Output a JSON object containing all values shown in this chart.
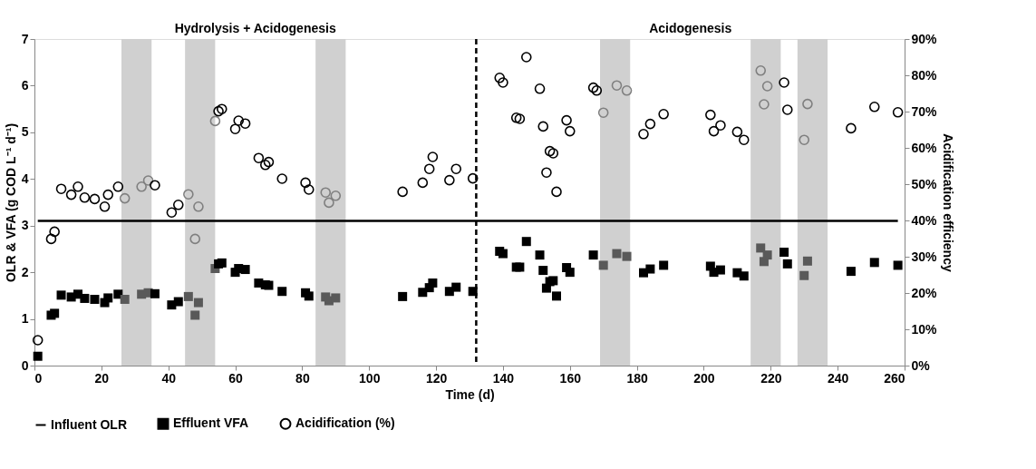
{
  "chart_data": {
    "type": "scatter",
    "xlabel": "Time (d)",
    "ylabel": "OLR & VFA (g COD L⁻¹ d⁻¹)",
    "y2label": "Acidification efficiency",
    "annotations": [
      "Hydrolysis + Acidogenesis",
      "Acidogenesis"
    ],
    "xlim": [
      0,
      260
    ],
    "xticks": [
      0,
      20,
      40,
      60,
      80,
      100,
      120,
      140,
      160,
      180,
      200,
      220,
      240,
      260
    ],
    "ylim": [
      0,
      7
    ],
    "yticks": [
      0,
      1,
      2,
      3,
      4,
      5,
      6,
      7
    ],
    "y2lim": [
      0,
      90
    ],
    "y2ticks": [
      {
        "value": 0,
        "label": "0%"
      },
      {
        "value": 10,
        "label": "10%"
      },
      {
        "value": 20,
        "label": "20%"
      },
      {
        "value": 30,
        "label": "30%"
      },
      {
        "value": 40,
        "label": "40%"
      },
      {
        "value": 50,
        "label": "50%"
      },
      {
        "value": 60,
        "label": "60%"
      },
      {
        "value": 70,
        "label": "70%"
      },
      {
        "value": 80,
        "label": "80%"
      },
      {
        "value": 90,
        "label": "90%"
      }
    ],
    "legend": "bottom",
    "ref_lines": [
      {
        "axis": "x",
        "value": 132,
        "label": null,
        "color": "#000000",
        "line_style": "dashed"
      }
    ],
    "bands": [
      {
        "axis": "x",
        "from": 26,
        "to": 35,
        "label": null,
        "color": "#d0d0d0"
      },
      {
        "axis": "x",
        "from": 45,
        "to": 54,
        "label": null,
        "color": "#d0d0d0"
      },
      {
        "axis": "x",
        "from": 84,
        "to": 93,
        "label": null,
        "color": "#d0d0d0"
      },
      {
        "axis": "x",
        "from": 169,
        "to": 178,
        "label": null,
        "color": "#d0d0d0"
      },
      {
        "axis": "x",
        "from": 214,
        "to": 223,
        "label": null,
        "color": "#d0d0d0"
      },
      {
        "axis": "x",
        "from": 228,
        "to": 237,
        "label": null,
        "color": "#d0d0d0"
      }
    ],
    "series": [
      {
        "name": "Influent OLR",
        "type": "line",
        "color": "#000000",
        "line_style": "solid",
        "x": [
          1,
          258
        ],
        "values": [
          3.1,
          3.1
        ]
      },
      {
        "name": "Effluent VFA",
        "marker": "square",
        "color": "#000000",
        "x": [
          1,
          5,
          6,
          8,
          11,
          13,
          15,
          18,
          21,
          22,
          25,
          27,
          32,
          34,
          36,
          41,
          43,
          46,
          48,
          49,
          54,
          55,
          56,
          60,
          61,
          63,
          67,
          69,
          70,
          74,
          81,
          82,
          87,
          88,
          90,
          110,
          116,
          118,
          119,
          124,
          126,
          131,
          139,
          140,
          144,
          145,
          147,
          151,
          152,
          153,
          154,
          155,
          156,
          159,
          160,
          167,
          170,
          174,
          177,
          182,
          184,
          188,
          202,
          203,
          205,
          210,
          212,
          217,
          218,
          219,
          224,
          225,
          230,
          231,
          244,
          251,
          258
        ],
        "values": [
          0.2,
          1.08,
          1.12,
          1.51,
          1.47,
          1.53,
          1.44,
          1.42,
          1.35,
          1.45,
          1.53,
          1.42,
          1.53,
          1.56,
          1.54,
          1.3,
          1.37,
          1.48,
          1.08,
          1.35,
          2.08,
          2.18,
          2.2,
          2.0,
          2.08,
          2.06,
          1.77,
          1.73,
          1.72,
          1.59,
          1.56,
          1.49,
          1.47,
          1.39,
          1.45,
          1.48,
          1.57,
          1.67,
          1.77,
          1.59,
          1.68,
          1.59,
          2.45,
          2.4,
          2.11,
          2.11,
          2.66,
          2.37,
          2.04,
          1.66,
          1.8,
          1.82,
          1.49,
          2.1,
          2.0,
          2.37,
          2.15,
          2.4,
          2.34,
          1.99,
          2.07,
          2.15,
          2.13,
          2.0,
          2.05,
          1.99,
          1.92,
          2.52,
          2.23,
          2.37,
          2.43,
          2.18,
          1.93,
          2.24,
          2.02,
          2.21,
          2.15
        ],
        "colors": [
          "#000000",
          "#000000",
          "#000000",
          "#000000",
          "#000000",
          "#000000",
          "#000000",
          "#000000",
          "#000000",
          "#000000",
          "#000000",
          "#595959",
          "#595959",
          "#595959",
          "#000000",
          "#000000",
          "#000000",
          "#595959",
          "#595959",
          "#595959",
          "#595959",
          "#000000",
          "#000000",
          "#000000",
          "#000000",
          "#000000",
          "#000000",
          "#000000",
          "#000000",
          "#000000",
          "#000000",
          "#000000",
          "#595959",
          "#595959",
          "#595959",
          "#000000",
          "#000000",
          "#000000",
          "#000000",
          "#000000",
          "#000000",
          "#000000",
          "#000000",
          "#000000",
          "#000000",
          "#000000",
          "#000000",
          "#000000",
          "#000000",
          "#000000",
          "#000000",
          "#000000",
          "#000000",
          "#000000",
          "#000000",
          "#000000",
          "#595959",
          "#595959",
          "#595959",
          "#000000",
          "#000000",
          "#000000",
          "#000000",
          "#000000",
          "#000000",
          "#000000",
          "#000000",
          "#595959",
          "#595959",
          "#595959",
          "#000000",
          "#000000",
          "#595959",
          "#595959",
          "#000000",
          "#000000",
          "#000000"
        ]
      },
      {
        "name": "Acidification (%)",
        "marker": "circle",
        "color": "#000000",
        "axis": "y2",
        "x": [
          1,
          5,
          6,
          8,
          11,
          13,
          15,
          18,
          21,
          22,
          25,
          27,
          32,
          34,
          36,
          41,
          43,
          46,
          48,
          49,
          54,
          55,
          56,
          60,
          61,
          63,
          67,
          69,
          70,
          74,
          81,
          82,
          87,
          88,
          90,
          110,
          116,
          118,
          119,
          124,
          126,
          131,
          139,
          140,
          144,
          145,
          147,
          151,
          152,
          153,
          154,
          155,
          156,
          159,
          160,
          167,
          168,
          170,
          174,
          177,
          182,
          184,
          188,
          202,
          203,
          205,
          210,
          212,
          217,
          218,
          219,
          224,
          225,
          230,
          231,
          244,
          251,
          258
        ],
        "values": [
          7,
          34.9,
          36.9,
          48.7,
          47.1,
          49.3,
          46.3,
          45.9,
          43.8,
          47.1,
          49.3,
          46.1,
          49.3,
          51.0,
          49.7,
          42.2,
          44.3,
          47.2,
          34.9,
          43.8,
          67.4,
          70.1,
          70.7,
          65.2,
          67.5,
          66.7,
          57.2,
          55.3,
          56.1,
          51.5,
          50.4,
          48.5,
          47.7,
          44.9,
          46.8,
          47.9,
          50.4,
          54.2,
          57.5,
          51.1,
          54.2,
          51.6,
          79.3,
          78.0,
          68.3,
          68.0,
          85.0,
          76.3,
          65.9,
          53.2,
          59.1,
          58.5,
          47.9,
          67.6,
          64.6,
          76.6,
          75.8,
          69.7,
          77.2,
          75.8,
          63.8,
          66.6,
          69.3,
          69.1,
          64.6,
          66.2,
          64.4,
          62.2,
          81.3,
          72.0,
          77.0,
          78.0,
          70.5,
          62.2,
          72.1,
          65.4,
          71.3,
          69.8
        ],
        "colors": [
          "#000000",
          "#000000",
          "#000000",
          "#000000",
          "#000000",
          "#000000",
          "#000000",
          "#000000",
          "#000000",
          "#000000",
          "#000000",
          "#7f7f7f",
          "#7f7f7f",
          "#7f7f7f",
          "#000000",
          "#000000",
          "#000000",
          "#7f7f7f",
          "#7f7f7f",
          "#7f7f7f",
          "#7f7f7f",
          "#000000",
          "#000000",
          "#000000",
          "#000000",
          "#000000",
          "#000000",
          "#000000",
          "#000000",
          "#000000",
          "#000000",
          "#000000",
          "#7f7f7f",
          "#7f7f7f",
          "#7f7f7f",
          "#000000",
          "#000000",
          "#000000",
          "#000000",
          "#000000",
          "#000000",
          "#000000",
          "#000000",
          "#000000",
          "#000000",
          "#000000",
          "#000000",
          "#000000",
          "#000000",
          "#000000",
          "#000000",
          "#000000",
          "#000000",
          "#000000",
          "#000000",
          "#000000",
          "#000000",
          "#7f7f7f",
          "#7f7f7f",
          "#7f7f7f",
          "#000000",
          "#000000",
          "#000000",
          "#000000",
          "#000000",
          "#000000",
          "#000000",
          "#000000",
          "#7f7f7f",
          "#7f7f7f",
          "#7f7f7f",
          "#000000",
          "#000000",
          "#7f7f7f",
          "#7f7f7f",
          "#000000",
          "#000000",
          "#000000"
        ]
      }
    ]
  }
}
